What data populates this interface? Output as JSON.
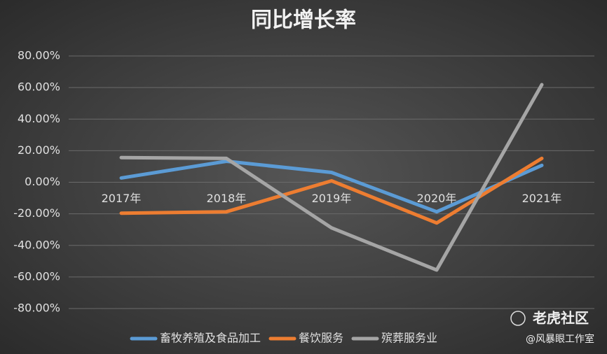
{
  "chart_data": {
    "type": "line",
    "title": "同比增长率",
    "categories": [
      "2017年",
      "2018年",
      "2019年",
      "2020年",
      "2021年"
    ],
    "series": [
      {
        "name": "畜牧养殖及食品加工",
        "color": "#5b9bd5",
        "values": [
          2.7,
          13.3,
          6.2,
          -18.7,
          10.7
        ]
      },
      {
        "name": "餐饮服务",
        "color": "#ed7d31",
        "values": [
          -19.6,
          -18.7,
          0.9,
          -25.8,
          15.1
        ]
      },
      {
        "name": "殡葬服务业",
        "color": "#a5a5a5",
        "values": [
          15.6,
          15.1,
          -28.9,
          -55.6,
          61.8
        ]
      }
    ],
    "ylim": [
      -80,
      80
    ],
    "yticks": [
      {
        "value": -80,
        "label": "-80.00%"
      },
      {
        "value": -60,
        "label": "-60.00%"
      },
      {
        "value": -40,
        "label": "-40.00%"
      },
      {
        "value": -20,
        "label": "-20.00%"
      },
      {
        "value": 0,
        "label": "0.00%"
      },
      {
        "value": 20,
        "label": "20.00%"
      },
      {
        "value": 40,
        "label": "40.00%"
      },
      {
        "value": 60,
        "label": "60.00%"
      },
      {
        "value": 80,
        "label": "80.00%"
      }
    ],
    "grid": true,
    "legend": "bottom"
  },
  "watermark": {
    "brand": "老虎社区",
    "author": "@风暴眼工作室"
  }
}
